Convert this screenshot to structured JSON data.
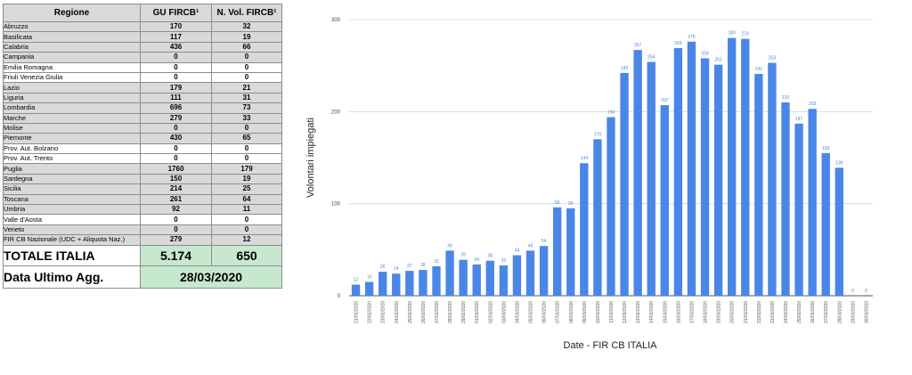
{
  "table": {
    "headers": [
      "Regione",
      "GU FIRCB¹",
      "N. Vol. FIRCB¹"
    ],
    "rows": [
      {
        "name": "Abruzzo",
        "gu": "170",
        "vol": "32",
        "shaded": true
      },
      {
        "name": "Basilicata",
        "gu": "117",
        "vol": "19",
        "shaded": true
      },
      {
        "name": "Calabria",
        "gu": "436",
        "vol": "66",
        "shaded": true
      },
      {
        "name": "Campania",
        "gu": "0",
        "vol": "0",
        "shaded": true
      },
      {
        "name": "Emilia Romagna",
        "gu": "0",
        "vol": "0",
        "shaded": false
      },
      {
        "name": "Friuli Venezia Giulia",
        "gu": "0",
        "vol": "0",
        "shaded": false
      },
      {
        "name": "Lazio",
        "gu": "179",
        "vol": "21",
        "shaded": true
      },
      {
        "name": "Liguria",
        "gu": "111",
        "vol": "31",
        "shaded": true
      },
      {
        "name": "Lombardia",
        "gu": "696",
        "vol": "73",
        "shaded": true
      },
      {
        "name": "Marche",
        "gu": "279",
        "vol": "33",
        "shaded": true
      },
      {
        "name": "Molise",
        "gu": "0",
        "vol": "0",
        "shaded": true
      },
      {
        "name": "Piemonte",
        "gu": "430",
        "vol": "65",
        "shaded": true
      },
      {
        "name": "Prov. Aut. Bolzano",
        "gu": "0",
        "vol": "0",
        "shaded": false
      },
      {
        "name": "Prov. Aut. Trento",
        "gu": "0",
        "vol": "0",
        "shaded": false
      },
      {
        "name": "Puglia",
        "gu": "1760",
        "vol": "179",
        "shaded": true
      },
      {
        "name": "Sardegna",
        "gu": "150",
        "vol": "19",
        "shaded": true
      },
      {
        "name": "Sicilia",
        "gu": "214",
        "vol": "25",
        "shaded": true
      },
      {
        "name": "Toscana",
        "gu": "261",
        "vol": "64",
        "shaded": true
      },
      {
        "name": "Umbria",
        "gu": "92",
        "vol": "11",
        "shaded": true
      },
      {
        "name": "Valle d'Aosta",
        "gu": "0",
        "vol": "0",
        "shaded": false
      },
      {
        "name": "Veneto",
        "gu": "0",
        "vol": "0",
        "shaded": true
      },
      {
        "name": "FIR CB Nazionale (UDC + Aliquota Naz.)",
        "gu": "279",
        "vol": "12",
        "shaded": true
      }
    ],
    "total": {
      "label": "TOTALE ITALIA",
      "gu": "5.174",
      "vol": "650"
    },
    "last_update": {
      "label": "Data Ultimo Agg.",
      "value": "28/03/2020"
    },
    "colors": {
      "shade": "#d9d9d9",
      "green": "#c6e8cf"
    }
  },
  "chart_data": {
    "type": "bar",
    "xlabel": "Date - FIR CB ITALIA",
    "ylabel": "Volontari impiegati",
    "ylim": [
      0,
      300
    ],
    "yticks": [
      0,
      100,
      200,
      300
    ],
    "grid": true,
    "bar_color": "#4a86e8",
    "categories": [
      "21/02/2020",
      "22/02/2020",
      "23/02/2020",
      "24/02/2020",
      "25/02/2020",
      "26/02/2020",
      "27/02/2020",
      "28/02/2020",
      "29/02/2020",
      "01/03/2020",
      "02/03/2020",
      "03/03/2020",
      "04/03/2020",
      "05/03/2020",
      "06/03/2020",
      "07/03/2020",
      "08/03/2020",
      "09/03/2020",
      "10/03/2020",
      "11/03/2020",
      "12/03/2020",
      "13/03/2020",
      "14/03/2020",
      "15/03/2020",
      "16/03/2020",
      "17/03/2020",
      "18/03/2020",
      "19/03/2020",
      "20/03/2020",
      "21/03/2020",
      "22/03/2020",
      "23/03/2020",
      "24/03/2020",
      "25/03/2020",
      "26/03/2020",
      "27/03/2020",
      "28/03/2020",
      "29/03/2020",
      "30/03/2020"
    ],
    "values": [
      12,
      15,
      26,
      24,
      27,
      28,
      32,
      49,
      39,
      34,
      38,
      33,
      44,
      49,
      54,
      96,
      95,
      144,
      170,
      194,
      242,
      267,
      254,
      207,
      269,
      276,
      258,
      251,
      280,
      279,
      241,
      253,
      210,
      187,
      203,
      155,
      139,
      0,
      0
    ]
  }
}
